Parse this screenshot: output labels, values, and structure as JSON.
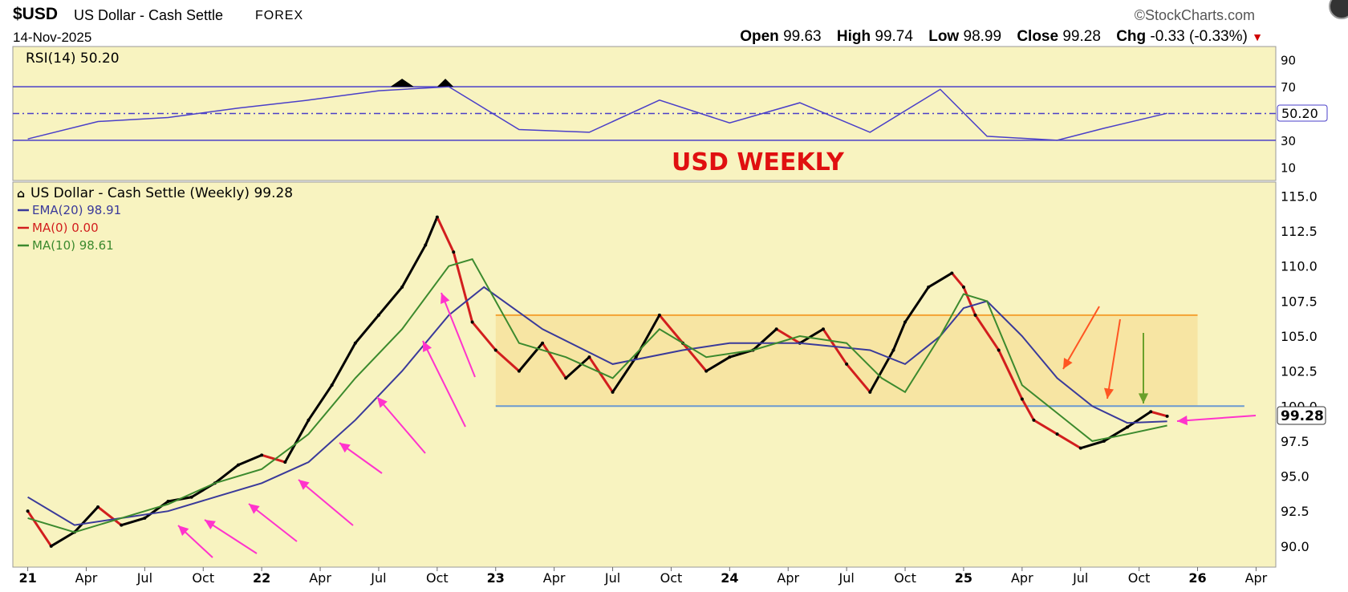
{
  "header": {
    "symbol": "$USD",
    "description": "US Dollar - Cash Settle",
    "exchange": "FOREX",
    "date": "14-Nov-2025",
    "brand": "©StockCharts.com",
    "ohlc": {
      "open_label": "Open",
      "open": "99.63",
      "high_label": "High",
      "high": "99.74",
      "low_label": "Low",
      "low": "98.99",
      "close_label": "Close",
      "close": "99.28",
      "chg_label": "Chg",
      "chg": "-0.33 (-0.33%)"
    }
  },
  "colors": {
    "panel_bg": "#f8f3c0",
    "rsi_line": "#4a3fc8",
    "ema": "#3a3a9a",
    "ma10": "#3c8a2e",
    "candle_up": "#000000",
    "candle_down": "#d21e1e",
    "title_red": "#e01010",
    "box_fill": "#f6d88a",
    "orange_line": "#f4a233",
    "support_line": "#6c9ad0",
    "arrow_magenta": "#ff33cc",
    "arrow_orange": "#ff5522",
    "arrow_green": "#6aa02a"
  },
  "chart_data": [
    {
      "type": "line",
      "title": "RSI(14) 50.20",
      "indicator": "RSI(14)",
      "last_value_label": "50.20",
      "ylim": [
        0,
        100
      ],
      "yticks": [
        10,
        30,
        50,
        70,
        90
      ],
      "reference_lines": [
        30,
        50,
        70
      ],
      "overlay_text": "USD WEEKLY",
      "x": [
        2021.0,
        2021.3,
        2021.6,
        2021.9,
        2022.2,
        2022.5,
        2022.8,
        2023.1,
        2023.4,
        2023.7,
        2024.0,
        2024.3,
        2024.6,
        2024.9,
        2025.1,
        2025.4,
        2025.6,
        2025.87
      ],
      "values": [
        31,
        44,
        47,
        54,
        60,
        67,
        70,
        38,
        36,
        60,
        43,
        58,
        36,
        68,
        33,
        30,
        39,
        50.2
      ]
    },
    {
      "type": "line",
      "title": "US Dollar - Cash Settle (Weekly) 99.28",
      "legend": [
        {
          "name": "US Dollar - Cash Settle (Weekly) 99.28",
          "color": "#000000"
        },
        {
          "name": "EMA(20) 98.91",
          "color": "#3a3a9a"
        },
        {
          "name": "MA(0) 0.00",
          "color": "#d21e1e"
        },
        {
          "name": "MA(10) 98.61",
          "color": "#3c8a2e"
        }
      ],
      "ylim": [
        88.5,
        116.0
      ],
      "yticks": [
        "115.0",
        "112.5",
        "110.0",
        "107.5",
        "105.0",
        "102.5",
        "100.0",
        "97.5",
        "95.0",
        "92.5",
        "90.0"
      ],
      "ytick_values": [
        115.0,
        112.5,
        110.0,
        107.5,
        105.0,
        102.5,
        100.0,
        97.5,
        95.0,
        92.5,
        90.0
      ],
      "xlim": [
        2020.95,
        2026.3
      ],
      "xticks": [
        "21",
        "Apr",
        "Jul",
        "Oct",
        "22",
        "Apr",
        "Jul",
        "Oct",
        "23",
        "Apr",
        "Jul",
        "Oct",
        "24",
        "Apr",
        "Jul",
        "Oct",
        "25",
        "Apr",
        "Jul",
        "Oct",
        "26",
        "Apr"
      ],
      "xtick_values": [
        2021.0,
        2021.25,
        2021.5,
        2021.75,
        2022.0,
        2022.25,
        2022.5,
        2022.75,
        2023.0,
        2023.25,
        2023.5,
        2023.75,
        2024.0,
        2024.25,
        2024.5,
        2024.75,
        2025.0,
        2025.25,
        2025.5,
        2025.75,
        2026.0,
        2026.25
      ],
      "xticks_bold": [
        "21",
        "22",
        "23",
        "24",
        "25",
        "26"
      ],
      "last_price_label": "99.28",
      "series": [
        {
          "name": "US Dollar - Cash Settle (Weekly) 99.28",
          "x": [
            2021.0,
            2021.1,
            2021.2,
            2021.3,
            2021.4,
            2021.5,
            2021.6,
            2021.7,
            2021.8,
            2021.9,
            2022.0,
            2022.1,
            2022.2,
            2022.3,
            2022.4,
            2022.5,
            2022.6,
            2022.7,
            2022.75,
            2022.82,
            2022.9,
            2023.0,
            2023.1,
            2023.2,
            2023.3,
            2023.4,
            2023.5,
            2023.6,
            2023.7,
            2023.8,
            2023.9,
            2024.0,
            2024.1,
            2024.2,
            2024.3,
            2024.4,
            2024.5,
            2024.6,
            2024.7,
            2024.75,
            2024.85,
            2024.95,
            2025.0,
            2025.05,
            2025.15,
            2025.25,
            2025.3,
            2025.4,
            2025.5,
            2025.6,
            2025.7,
            2025.8,
            2025.87
          ],
          "values": [
            92.5,
            90.0,
            91.0,
            92.8,
            91.5,
            92.0,
            93.2,
            93.5,
            94.5,
            95.8,
            96.5,
            96.0,
            99.0,
            101.5,
            104.5,
            106.5,
            108.5,
            111.5,
            113.5,
            111.0,
            106.0,
            104.0,
            102.5,
            104.5,
            102.0,
            103.5,
            101.0,
            103.5,
            106.5,
            104.5,
            102.5,
            103.5,
            104.0,
            105.5,
            104.5,
            105.5,
            103.0,
            101.0,
            104.0,
            106.0,
            108.5,
            109.5,
            108.5,
            106.5,
            104.0,
            100.5,
            99.0,
            98.0,
            97.0,
            97.5,
            98.5,
            99.6,
            99.28
          ]
        },
        {
          "name": "EMA(20) 98.91",
          "x": [
            2021.0,
            2021.2,
            2021.4,
            2021.6,
            2021.8,
            2022.0,
            2022.2,
            2022.4,
            2022.6,
            2022.8,
            2022.95,
            2023.2,
            2023.5,
            2023.8,
            2024.0,
            2024.3,
            2024.6,
            2024.75,
            2024.9,
            2025.0,
            2025.1,
            2025.25,
            2025.4,
            2025.55,
            2025.7,
            2025.87
          ],
          "values": [
            93.5,
            91.5,
            92.0,
            92.5,
            93.5,
            94.5,
            96.0,
            99.0,
            102.5,
            106.5,
            108.5,
            105.5,
            103.0,
            104.0,
            104.5,
            104.5,
            104.0,
            103.0,
            105.0,
            107.0,
            107.5,
            105.0,
            102.0,
            100.0,
            98.8,
            98.91
          ]
        },
        {
          "name": "MA(10) 98.61",
          "x": [
            2021.0,
            2021.2,
            2021.4,
            2021.6,
            2021.8,
            2022.0,
            2022.2,
            2022.4,
            2022.6,
            2022.8,
            2022.9,
            2023.1,
            2023.3,
            2023.5,
            2023.7,
            2023.9,
            2024.1,
            2024.3,
            2024.5,
            2024.65,
            2024.75,
            2024.9,
            2025.0,
            2025.1,
            2025.25,
            2025.4,
            2025.55,
            2025.7,
            2025.87
          ],
          "values": [
            92.0,
            91.0,
            92.0,
            93.0,
            94.5,
            95.5,
            98.0,
            102.0,
            105.5,
            110.0,
            110.5,
            104.5,
            103.5,
            102.0,
            105.5,
            103.5,
            104.0,
            105.0,
            104.5,
            102.0,
            101.0,
            105.0,
            108.0,
            107.5,
            101.5,
            99.5,
            97.5,
            98.0,
            98.61
          ]
        }
      ],
      "annotations": {
        "range_box": {
          "x_start": 2023.0,
          "x_end": 2026.0,
          "y_low": 100.0,
          "y_high": 106.5
        },
        "support_line": {
          "y": 100.0,
          "x_start": 2023.0,
          "x_end": 2026.2
        }
      }
    }
  ]
}
